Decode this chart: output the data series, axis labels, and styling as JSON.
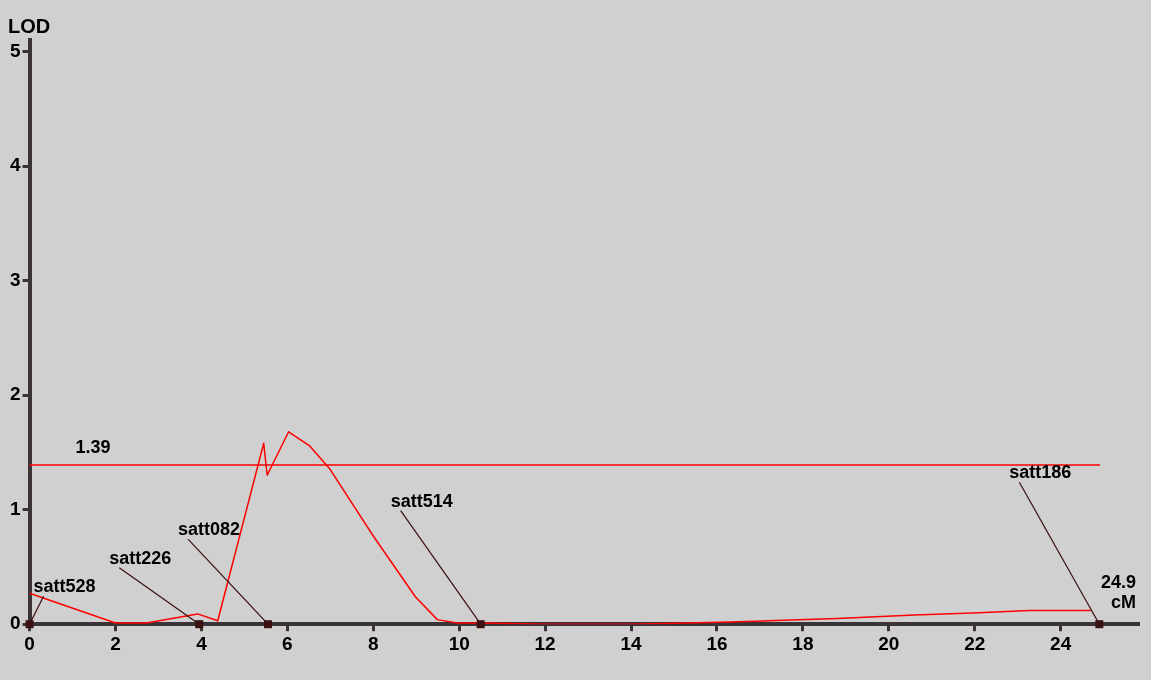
{
  "chart_data": {
    "type": "line",
    "ylabel": "LOD",
    "color": "#ff0000",
    "x": [
      0,
      2,
      2.72,
      3.91,
      4.38,
      5.45,
      5.53,
      6.03,
      6.51,
      6.98,
      8.0,
      8.98,
      9.49,
      9.96,
      10.47,
      12,
      14,
      16.3,
      17.2,
      18.8,
      20.6,
      22.1,
      23.3,
      24.7
    ],
    "values": [
      0.27,
      0.01,
      0.01,
      0.09,
      0.03,
      1.58,
      1.3,
      1.68,
      1.56,
      1.36,
      0.77,
      0.24,
      0.04,
      0.01,
      0.01,
      0,
      0,
      0.02,
      0.03,
      0.05,
      0.08,
      0.1,
      0.12,
      0.12
    ],
    "xlim": [
      0,
      25.8
    ],
    "xticks": [
      0,
      2,
      4,
      6,
      8,
      10,
      12,
      14,
      16,
      18,
      20,
      22,
      24
    ],
    "ylim": [
      0,
      5.1
    ],
    "yticks": [
      0,
      1,
      2,
      3,
      4,
      5
    ],
    "grid": false,
    "marker": "none",
    "line_style": "solid",
    "ref_lines": [
      {
        "axis": "y",
        "value": 1.39,
        "label": "1.39",
        "color": "#ff0000"
      }
    ],
    "annotations": [
      {
        "text": "satt528",
        "x": 0,
        "y": 0
      },
      {
        "text": "satt226",
        "x": 3.95,
        "y": 0
      },
      {
        "text": "satt082",
        "x": 5.55,
        "y": 0
      },
      {
        "text": "satt514",
        "x": 10.5,
        "y": 0
      },
      {
        "text": "satt186",
        "x": 24.9,
        "y": 0
      },
      "24.9 cM"
    ]
  }
}
